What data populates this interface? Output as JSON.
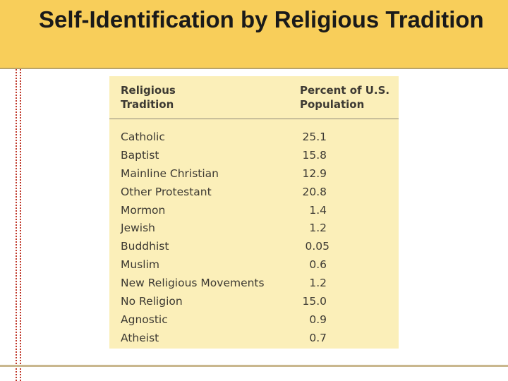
{
  "slide": {
    "title": "Self-Identification by Religious Tradition"
  },
  "table": {
    "headers": {
      "tradition": "Religious\nTradition",
      "percent": "Percent of U.S.\nPopulation"
    },
    "rows": [
      {
        "tradition": "Catholic",
        "percent": "25.1"
      },
      {
        "tradition": "Baptist",
        "percent": "15.8"
      },
      {
        "tradition": "Mainline Christian",
        "percent": "12.9"
      },
      {
        "tradition": "Other Protestant",
        "percent": "20.8"
      },
      {
        "tradition": "Mormon",
        "percent": "1.4"
      },
      {
        "tradition": "Jewish",
        "percent": "1.2"
      },
      {
        "tradition": "Buddhist",
        "percent": "0.05"
      },
      {
        "tradition": "Muslim",
        "percent": "0.6"
      },
      {
        "tradition": "New Religious Movements",
        "percent": "1.2"
      },
      {
        "tradition": "No Religion",
        "percent": "15.0"
      },
      {
        "tradition": "Agnostic",
        "percent": "0.9"
      },
      {
        "tradition": "Atheist",
        "percent": "0.7"
      }
    ]
  },
  "colors": {
    "title_band": "#f8ce5a",
    "table_background": "#fbefb9",
    "dotted_rule": "#c0392b"
  }
}
